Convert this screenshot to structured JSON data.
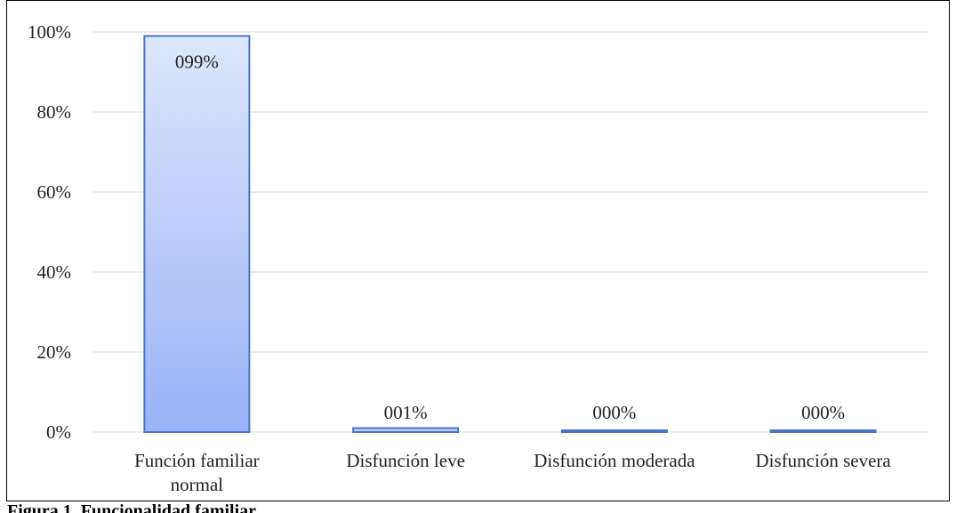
{
  "chart_data": {
    "type": "bar",
    "title": "",
    "xlabel": "",
    "ylabel": "",
    "categories": [
      "Función familiar normal",
      "Disfunción leve",
      "Disfunción moderada",
      "Disfunción severa"
    ],
    "category_lines": [
      [
        "Función familiar",
        "normal"
      ],
      [
        "Disfunción leve"
      ],
      [
        "Disfunción moderada"
      ],
      [
        "Disfunción severa"
      ]
    ],
    "values": [
      99,
      1,
      0,
      0
    ],
    "data_labels": [
      "099%",
      "001%",
      "000%",
      "000%"
    ],
    "ylim": [
      0,
      100
    ],
    "yticks": [
      "0%",
      "20%",
      "40%",
      "60%",
      "80%",
      "100%"
    ],
    "ytick_values": [
      0,
      20,
      40,
      60,
      80,
      100
    ],
    "grid": true,
    "legend": "none",
    "colors": {
      "bar_top": "#dde6fb",
      "bar_bottom": "#99b3f7",
      "bar_stroke": "#4a74c9",
      "grid": "#d9d9d9"
    }
  },
  "caption": "Figura 1. Funcionalidad familiar"
}
